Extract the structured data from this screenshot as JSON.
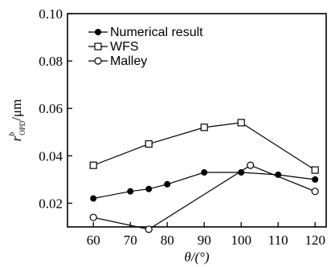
{
  "chart_data": {
    "type": "line",
    "xlabel": "θ/(°)",
    "ylabel": {
      "main": "r",
      "superscript": "b",
      "subscript": "OPD",
      "unit": "/μm"
    },
    "xlim": [
      53,
      123
    ],
    "ylim": [
      0.01,
      0.1
    ],
    "xticks": [
      60,
      70,
      80,
      90,
      100,
      110,
      120
    ],
    "yticks": [
      0.02,
      0.04,
      0.06,
      0.08,
      0.1
    ],
    "ytick_labels": [
      "0.02",
      "0.04",
      "0.06",
      "0.08",
      "0.10"
    ],
    "grid": false,
    "legend_position": "top-left",
    "series": [
      {
        "name": "Numerical result",
        "marker": "filled-circle",
        "x": [
          60,
          70,
          75,
          80,
          90,
          100,
          110,
          120
        ],
        "y": [
          0.022,
          0.025,
          0.026,
          0.028,
          0.033,
          0.033,
          0.032,
          0.03
        ]
      },
      {
        "name": "WFS",
        "marker": "open-square",
        "x": [
          60,
          75,
          90,
          100,
          120
        ],
        "y": [
          0.036,
          0.045,
          0.052,
          0.054,
          0.034
        ]
      },
      {
        "name": "Malley",
        "marker": "open-circle",
        "x": [
          60,
          75,
          102.5,
          120
        ],
        "y": [
          0.014,
          0.009,
          0.036,
          0.025
        ]
      }
    ]
  }
}
